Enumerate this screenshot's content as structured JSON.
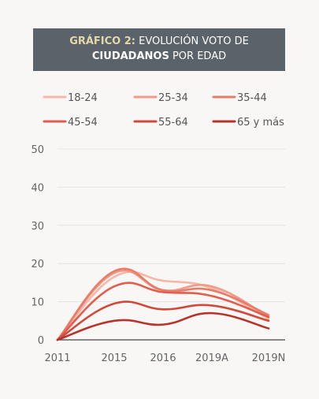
{
  "header": {
    "title_prefix": "GRÁFICO 2:",
    "title_line1": "EVOLUCIÓN VOTO DE",
    "title_bold": "CIUDADANOS",
    "title_rest": "POR EDAD"
  },
  "chart_data": {
    "type": "line",
    "title": "GRÁFICO 2: EVOLUCIÓN VOTO DE CIUDADANOS POR EDAD",
    "categories": [
      "2011",
      "2015",
      "2016",
      "2019A",
      "2019N"
    ],
    "ylim": [
      0,
      50
    ],
    "yticks": [
      0,
      10,
      20,
      30,
      40,
      50
    ],
    "grid": true,
    "legend_position": "top",
    "series": [
      {
        "name": "18-24",
        "color": "#f4b7a8",
        "values": [
          0,
          16.5,
          15.5,
          13.5,
          5.5
        ]
      },
      {
        "name": "25-34",
        "color": "#f09a87",
        "values": [
          0,
          17.5,
          13,
          14,
          6
        ]
      },
      {
        "name": "35-44",
        "color": "#e77d69",
        "values": [
          0,
          18,
          13,
          13,
          6.5
        ]
      },
      {
        "name": "45-54",
        "color": "#df5e4d",
        "values": [
          0,
          14,
          12.5,
          11.5,
          6
        ]
      },
      {
        "name": "55-64",
        "color": "#d04a3c",
        "values": [
          0,
          9.5,
          8,
          9,
          5
        ]
      },
      {
        "name": "65 y más",
        "color": "#b8342b",
        "values": [
          0,
          5,
          4,
          7,
          3
        ]
      }
    ]
  }
}
